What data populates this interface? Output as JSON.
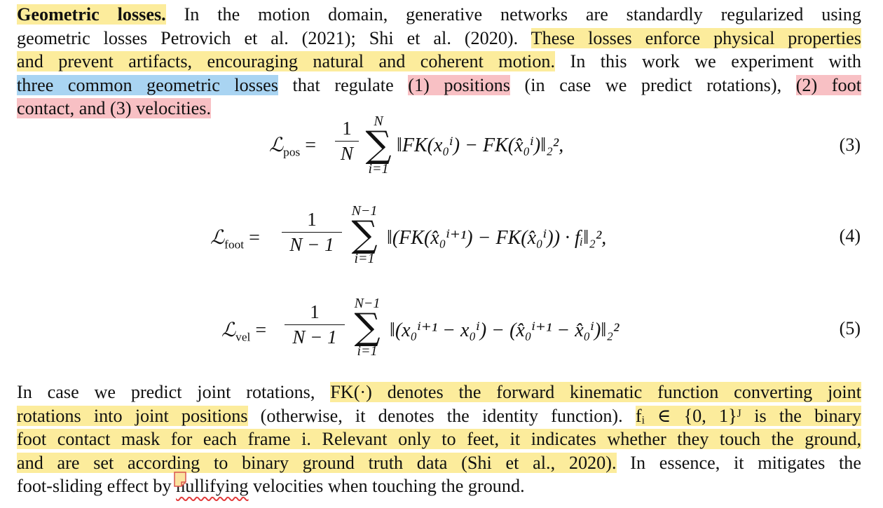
{
  "intro": {
    "heading": "Geometric losses.",
    "line1_rest": " In the motion domain, generative networks are standardly regularized using",
    "line2_a": "geometric losses Petrovich et al. (2021); Shi et al. (2020). ",
    "line2_hl": "These losses enforce physical properties",
    "line3_hl": "and prevent artifacts, encouraging natural and coherent motion.",
    "line3_rest": " In this work we experiment with",
    "line4_hl_blue": "three common geometric losses",
    "line4_mid": " that regulate ",
    "line4_hl_red1": "(1) positions",
    "line4_mid2": " (in case we predict rotations), ",
    "line4_hl_red2": "(2) foot",
    "line5_hl_red": "contact, and (3) velocities."
  },
  "equations": [
    {
      "number": "(3)",
      "name": "pos",
      "lhs": "ℒ",
      "sub": "pos",
      "numerator": "1",
      "denominator": "N",
      "sum_top": "N",
      "sum_bottom": "i=1",
      "body": "‖FK(x₀ⁱ) − FK(x̂₀ⁱ)‖₂²,"
    },
    {
      "number": "(4)",
      "name": "foot",
      "lhs": "ℒ",
      "sub": "foot",
      "numerator": "1",
      "denominator": "N − 1",
      "sum_top": "N−1",
      "sum_bottom": "i=1",
      "body": "‖(FK(x̂₀ⁱ⁺¹) − FK(x̂₀ⁱ)) · fᵢ‖₂²,"
    },
    {
      "number": "(5)",
      "name": "vel",
      "lhs": "ℒ",
      "sub": "vel",
      "numerator": "1",
      "denominator": "N − 1",
      "sum_top": "N−1",
      "sum_bottom": "i=1",
      "body": "‖(x₀ⁱ⁺¹ − x₀ⁱ) − (x̂₀ⁱ⁺¹ − x̂₀ⁱ)‖₂²"
    }
  ],
  "outro": {
    "l1_a": "In case we predict joint rotations, ",
    "l1_hl": "FK(·) denotes the forward kinematic function converting joint",
    "l2_hl": "rotations into joint positions",
    "l2_rest": " (otherwise, it denotes the identity function). ",
    "l2_hl2": "fᵢ ∈ {0, 1}ᴶ is the binary",
    "l3_hl": "foot contact mask for each frame i. Relevant only to feet, it indicates whether they touch the ground,",
    "l4_hl": "and are set according to binary ground truth data (Shi et al., 2020).",
    "l4_rest": " In essence, it mitigates the",
    "l5_a": "foot-sliding effect by ",
    "l5_sq": "nullifying",
    "l5_b": " velocities when touching the ground."
  },
  "colors": {
    "highlight_yellow": "#fcec9c",
    "highlight_blue": "#a9d4f2",
    "highlight_red": "#f8c0c4",
    "squiggle": "#e23b3b"
  }
}
